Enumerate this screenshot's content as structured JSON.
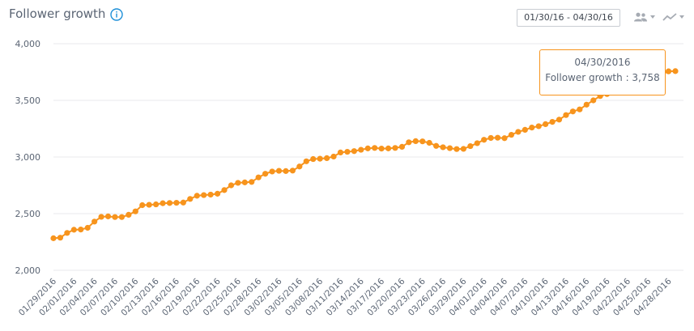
{
  "header": {
    "title": "Follower growth",
    "date_range": "01/30/16 - 04/30/16",
    "people_icon": "people-icon",
    "trend_icon": "trend-line-icon",
    "info_icon": "info-icon"
  },
  "tooltip": {
    "date": "04/30/2016",
    "label": "Follower growth",
    "separator": " : ",
    "value": "3,758"
  },
  "colors": {
    "series": "#f7941d",
    "grid": "#e8eaed",
    "text": "#5b6574",
    "accent": "#1d8fd8"
  },
  "chart_data": {
    "type": "line",
    "title": "Follower growth",
    "ylim": [
      2000,
      4000
    ],
    "yticks": [
      "2,000",
      "2,500",
      "3,000",
      "3,500",
      "4,000"
    ],
    "ytick_values": [
      2000,
      2500,
      3000,
      3500,
      4000
    ],
    "xtick_labels": [
      "01/29/2016",
      "02/01/2016",
      "02/04/2016",
      "02/07/2016",
      "02/10/2016",
      "02/13/2016",
      "02/16/2016",
      "02/19/2016",
      "02/22/2016",
      "02/25/2016",
      "02/28/2016",
      "03/02/2016",
      "03/05/2016",
      "03/08/2016",
      "03/11/2016",
      "03/14/2016",
      "03/17/2016",
      "03/20/2016",
      "03/23/2016",
      "03/26/2016",
      "03/29/2016",
      "04/01/2016",
      "04/04/2016",
      "04/07/2016",
      "04/10/2016",
      "04/13/2016",
      "04/16/2016",
      "04/19/2016",
      "04/22/2016",
      "04/25/2016",
      "04/28/2016"
    ],
    "grid": true,
    "series": [
      {
        "values": [
          2283,
          2288,
          2330,
          2358,
          2360,
          2375,
          2430,
          2472,
          2476,
          2470,
          2470,
          2490,
          2520,
          2575,
          2578,
          2582,
          2592,
          2594,
          2596,
          2598,
          2630,
          2658,
          2664,
          2668,
          2676,
          2708,
          2750,
          2772,
          2776,
          2780,
          2820,
          2852,
          2872,
          2878,
          2876,
          2880,
          2916,
          2962,
          2982,
          2985,
          2990,
          3004,
          3040,
          3046,
          3052,
          3064,
          3076,
          3080,
          3074,
          3076,
          3080,
          3090,
          3130,
          3140,
          3138,
          3125,
          3098,
          3086,
          3078,
          3070,
          3072,
          3096,
          3122,
          3152,
          3168,
          3170,
          3166,
          3196,
          3222,
          3240,
          3260,
          3272,
          3290,
          3310,
          3330,
          3370,
          3402,
          3420,
          3462,
          3500,
          3538,
          3556,
          3570,
          3588,
          3610,
          3630,
          3654,
          3678,
          3702,
          3730,
          3756,
          3758
        ]
      }
    ]
  }
}
